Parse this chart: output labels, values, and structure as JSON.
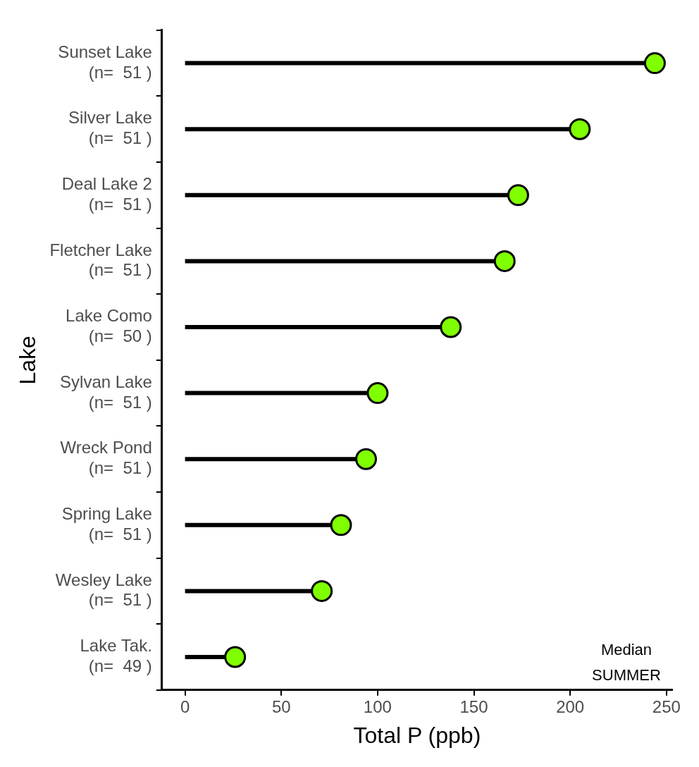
{
  "chart_data": {
    "type": "lollipop",
    "orientation": "horizontal",
    "xlabel": "Total P (ppb)",
    "ylabel": "Lake",
    "categories": [
      "Sunset Lake\n(n=  51 )",
      "Silver Lake\n(n=  51 )",
      "Deal Lake 2\n(n=  51 )",
      "Fletcher Lake\n(n=  51 )",
      "Lake Como\n(n=  50 )",
      "Sylvan Lake\n(n=  51 )",
      "Wreck Pond\n(n=  51 )",
      "Spring Lake\n(n=  51 )",
      "Wesley Lake\n(n=  51 )",
      "Lake Tak.\n(n=  49 )"
    ],
    "values": [
      244,
      205,
      173,
      166,
      138,
      100,
      94,
      81,
      71,
      26
    ],
    "color": "#7fff00",
    "xlim": [
      -12,
      253
    ],
    "xticks": [
      0,
      50,
      100,
      150,
      200,
      250
    ],
    "annotations": [
      "Median",
      "SUMMER"
    ],
    "grid": false,
    "marker": "circle"
  }
}
